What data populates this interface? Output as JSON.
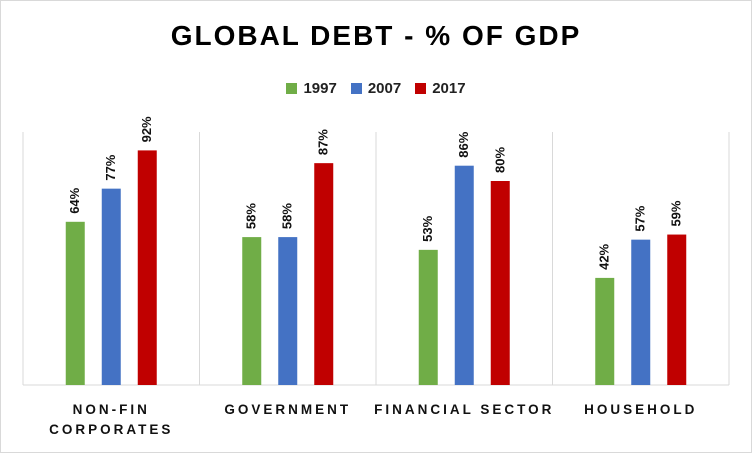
{
  "chart_data": {
    "type": "bar",
    "title": "GLOBAL DEBT - % OF GDP",
    "categories": [
      [
        "NON-FIN",
        "CORPORATES"
      ],
      [
        "GOVERNMENT"
      ],
      [
        "FINANCIAL SECTOR"
      ],
      [
        "HOUSEHOLD"
      ]
    ],
    "series": [
      {
        "name": "1997",
        "color": "#70ad47",
        "values": [
          64,
          58,
          53,
          42
        ]
      },
      {
        "name": "2007",
        "color": "#4472c4",
        "values": [
          77,
          58,
          86,
          57
        ]
      },
      {
        "name": "2017",
        "color": "#c00000",
        "values": [
          92,
          87,
          80,
          59
        ]
      }
    ],
    "value_suffix": "%",
    "ylim": [
      0,
      100
    ],
    "legend_position": "top",
    "grid": false,
    "separator_color": "#d9d9d9"
  }
}
